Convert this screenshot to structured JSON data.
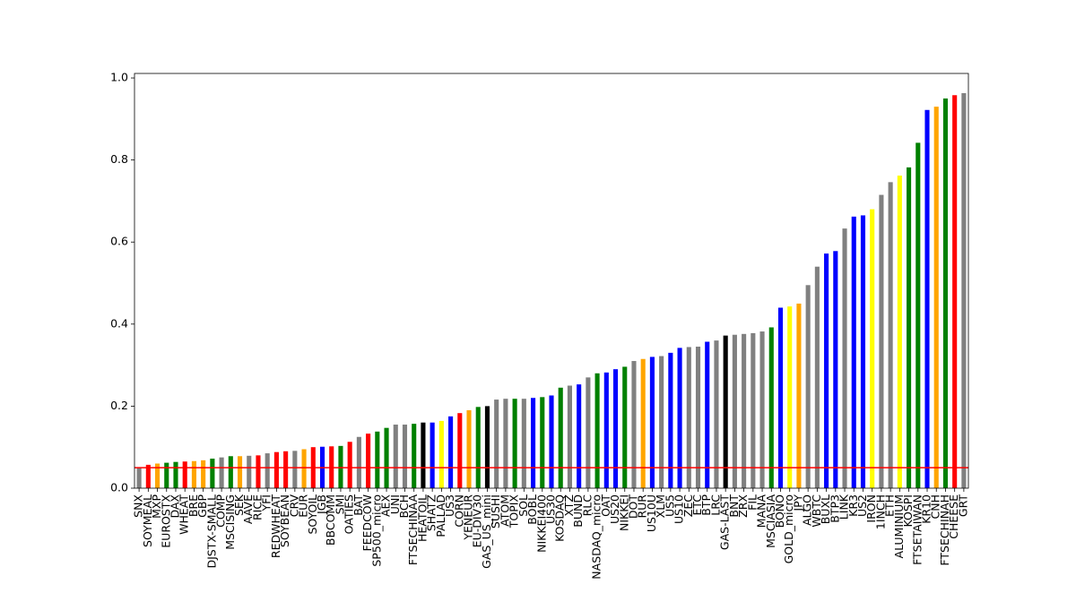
{
  "chart_data": {
    "type": "bar",
    "categories": [
      "SNX",
      "SOYMEAL",
      "MXP",
      "EUROSTX",
      "DAX",
      "WHEAT",
      "BRE",
      "GBP",
      "DJSTX-SMALL",
      "COMP",
      "MSCISING",
      "SEK",
      "AAVE",
      "RICE",
      "YFI",
      "REDWHEAT",
      "SOYBEAN",
      "CRV",
      "EUR",
      "SOYOIL",
      "JGB",
      "BBCOMM",
      "SMI",
      "OATIES",
      "BAT",
      "FEEDCOW",
      "SP500_micro",
      "AEX",
      "UNI",
      "BCH",
      "FTSECHINAA",
      "HEATOIL",
      "SHATZ",
      "PALLAD",
      "US3",
      "CORN",
      "YENEUR",
      "EU-DIV30",
      "GAS_US_mini",
      "SUSHI",
      "ATOM",
      "TOPIX",
      "SOL",
      "BOBL",
      "NIKKEI400",
      "US30",
      "KOSDAQ",
      "XTZ",
      "BUND",
      "RLC",
      "NASDAQ_micro",
      "OAT",
      "US20",
      "NIKKEI",
      "DOT",
      "RUR",
      "US10U",
      "XLM",
      "US5",
      "US10",
      "ZEC",
      "ETC",
      "BTP",
      "LRC",
      "GAS-LAST",
      "BNT",
      "ZRX",
      "FIL",
      "MANA",
      "MSCIASIA",
      "BONO",
      "GOLD_micro",
      "JPY",
      "ALGO",
      "WBTC",
      "BUXL",
      "BTP3",
      "LINK",
      "KR3",
      "US2",
      "IRON",
      "1INCH",
      "ETH",
      "ALUMINIUM",
      "KOSPI",
      "FTSETAIWAN",
      "KR10",
      "CNH",
      "FTSECHINAH",
      "CHEESE",
      "GRT"
    ],
    "values": [
      0.05,
      0.057,
      0.06,
      0.062,
      0.064,
      0.065,
      0.066,
      0.068,
      0.072,
      0.075,
      0.078,
      0.078,
      0.079,
      0.08,
      0.085,
      0.088,
      0.09,
      0.091,
      0.095,
      0.1,
      0.101,
      0.102,
      0.103,
      0.113,
      0.125,
      0.133,
      0.138,
      0.147,
      0.155,
      0.155,
      0.157,
      0.16,
      0.16,
      0.164,
      0.175,
      0.183,
      0.19,
      0.198,
      0.2,
      0.216,
      0.218,
      0.218,
      0.218,
      0.22,
      0.222,
      0.226,
      0.245,
      0.25,
      0.253,
      0.27,
      0.28,
      0.282,
      0.29,
      0.296,
      0.31,
      0.315,
      0.32,
      0.322,
      0.33,
      0.342,
      0.344,
      0.345,
      0.357,
      0.36,
      0.372,
      0.374,
      0.376,
      0.378,
      0.382,
      0.392,
      0.44,
      0.443,
      0.45,
      0.495,
      0.54,
      0.572,
      0.578,
      0.633,
      0.662,
      0.665,
      0.68,
      0.715,
      0.746,
      0.762,
      0.782,
      0.842,
      0.922,
      0.93,
      0.95,
      0.958,
      0.963
    ],
    "colors": [
      "grey",
      "red",
      "orange",
      "green",
      "green",
      "red",
      "orange",
      "orange",
      "green",
      "grey",
      "green",
      "orange",
      "grey",
      "red",
      "grey",
      "red",
      "red",
      "grey",
      "orange",
      "red",
      "blue",
      "red",
      "green",
      "red",
      "grey",
      "red",
      "green",
      "green",
      "grey",
      "grey",
      "green",
      "black",
      "blue",
      "yellow",
      "blue",
      "red",
      "orange",
      "green",
      "black",
      "grey",
      "grey",
      "green",
      "grey",
      "blue",
      "green",
      "blue",
      "green",
      "grey",
      "blue",
      "grey",
      "green",
      "blue",
      "blue",
      "green",
      "grey",
      "orange",
      "blue",
      "grey",
      "blue",
      "blue",
      "grey",
      "grey",
      "blue",
      "grey",
      "black",
      "grey",
      "grey",
      "grey",
      "grey",
      "green",
      "blue",
      "yellow",
      "orange",
      "grey",
      "grey",
      "blue",
      "blue",
      "grey",
      "blue",
      "blue",
      "yellow",
      "grey",
      "grey",
      "yellow",
      "green",
      "green",
      "blue",
      "orange",
      "green",
      "red",
      "grey"
    ],
    "ylim": [
      0,
      1.011
    ],
    "yticks": [
      {
        "value": 0,
        "label": "0.0"
      },
      0.2,
      0.4,
      0.6,
      0.8,
      {
        "value": 1,
        "label": "1.0"
      }
    ],
    "hline": 0.05,
    "hline_color": "red"
  }
}
